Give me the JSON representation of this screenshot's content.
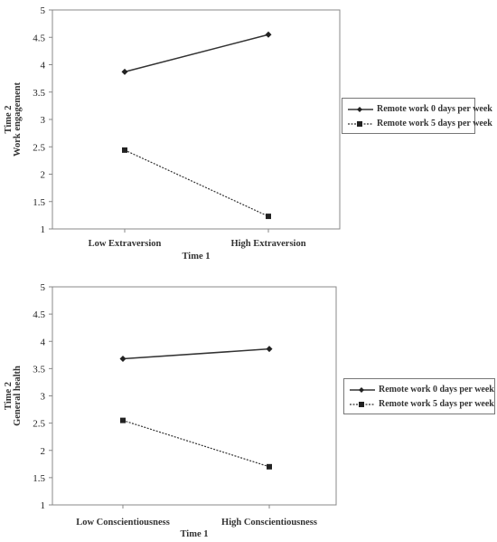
{
  "chart_data": [
    {
      "type": "line",
      "categories": [
        "Low Extraversion",
        "High Extraversion"
      ],
      "series": [
        {
          "name": "Remote work 0 days per week",
          "values": [
            3.87,
            4.55
          ],
          "color": "#333333",
          "marker": "diamond",
          "dash": "solid"
        },
        {
          "name": "Remote work 5 days per week",
          "values": [
            2.44,
            1.23
          ],
          "color": "#333333",
          "marker": "square",
          "dash": "dotted"
        }
      ],
      "xlabel": "Time 1",
      "ylabel": [
        "Time 2",
        "Work engagement"
      ],
      "ylim": [
        1,
        5
      ],
      "yticks": [
        "1",
        "1.5",
        "2",
        "2.5",
        "3",
        "3.5",
        "4",
        "4.5",
        "5"
      ],
      "grid": false,
      "legend": "right"
    },
    {
      "type": "line",
      "categories": [
        "Low Conscientiousness",
        "High  Conscientiousness"
      ],
      "series": [
        {
          "name": "Remote work 0 days per week",
          "values": [
            3.68,
            3.86
          ],
          "color": "#333333",
          "marker": "diamond",
          "dash": "solid"
        },
        {
          "name": "Remote work 5 days per week",
          "values": [
            2.55,
            1.7
          ],
          "color": "#333333",
          "marker": "square",
          "dash": "dotted"
        }
      ],
      "xlabel": "Time 1",
      "ylabel": [
        "Time 2",
        "General health"
      ],
      "ylim": [
        1,
        5
      ],
      "yticks": [
        "1",
        "1.5",
        "2",
        "2.5",
        "3",
        "3.5",
        "4",
        "4.5",
        "5"
      ],
      "grid": false,
      "legend": "right"
    }
  ]
}
